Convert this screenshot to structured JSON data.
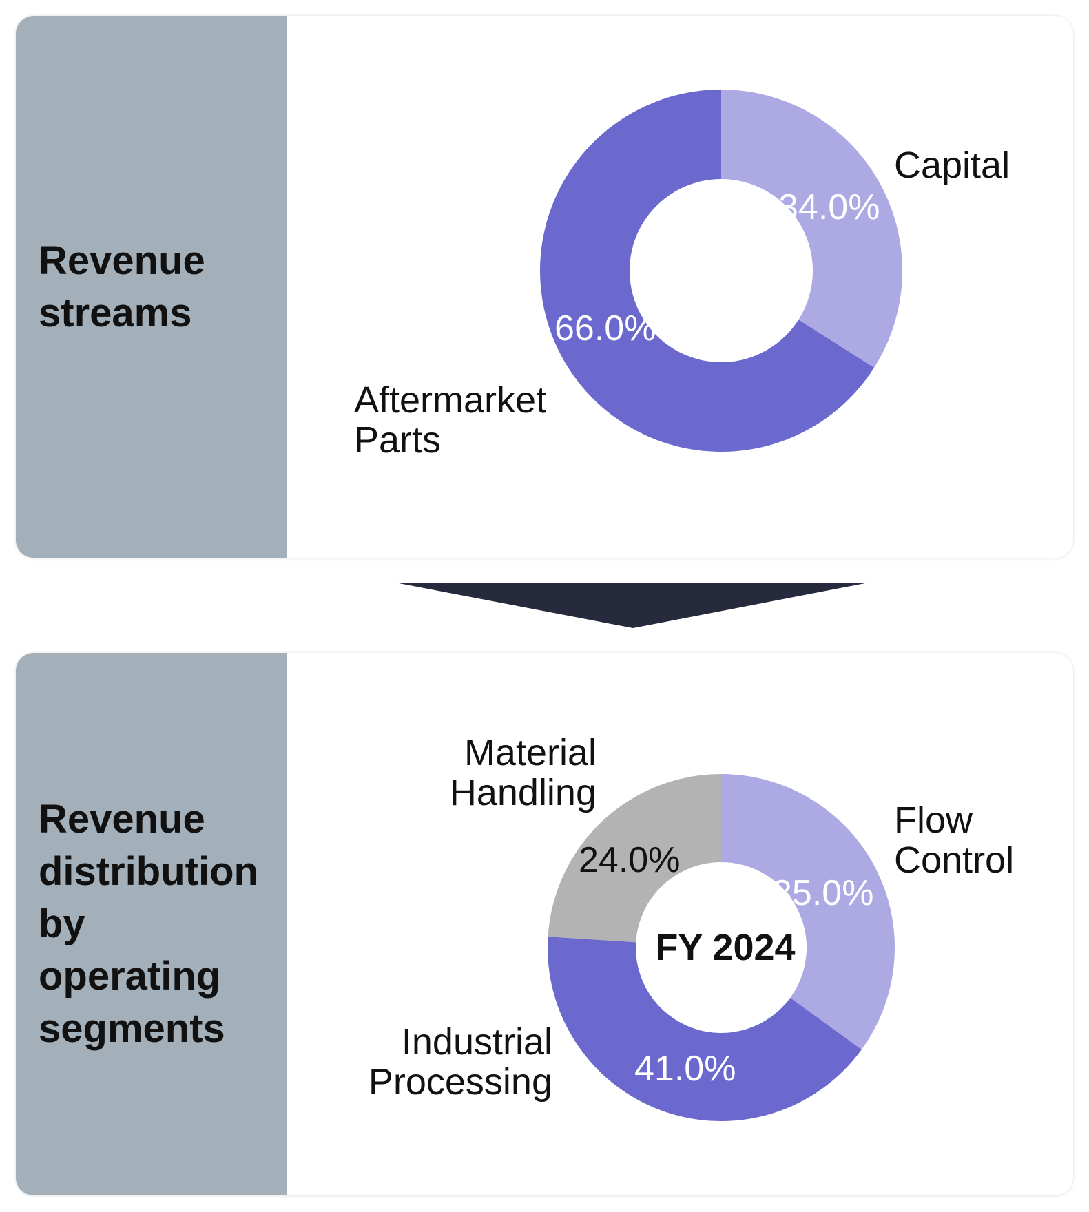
{
  "panels": [
    {
      "title_lines": [
        "Revenue",
        "streams"
      ]
    },
    {
      "title_lines": [
        "Revenue",
        "distribution",
        "by",
        "operating",
        "segments"
      ]
    }
  ],
  "colors": {
    "sidebar": "#a4b0b9",
    "light_purple": "#adaae3",
    "dark_purple": "#6b69cd",
    "gray": "#b3b3b3",
    "arrow": "#262a3c"
  },
  "chart_data": [
    {
      "type": "pie",
      "donut": true,
      "title": "",
      "center_label": "",
      "slices": [
        {
          "label_lines": [
            "Capital"
          ],
          "value": 34.0,
          "pct_label": "34.0%",
          "color": "#adaae3"
        },
        {
          "label_lines": [
            "Aftermarket",
            "Parts"
          ],
          "value": 66.0,
          "pct_label": "66.0%",
          "color": "#6b69cd"
        }
      ]
    },
    {
      "type": "pie",
      "donut": true,
      "title": "",
      "center_label": "FY 2024",
      "slices": [
        {
          "label_lines": [
            "Flow",
            "Control"
          ],
          "value": 35.0,
          "pct_label": "35.0%",
          "color": "#adaae3"
        },
        {
          "label_lines": [
            "Industrial",
            "Processing"
          ],
          "value": 41.0,
          "pct_label": "41.0%",
          "color": "#6b69cd"
        },
        {
          "label_lines": [
            "Material",
            "Handling"
          ],
          "value": 24.0,
          "pct_label": "24.0%",
          "color": "#b3b3b3"
        }
      ]
    }
  ]
}
